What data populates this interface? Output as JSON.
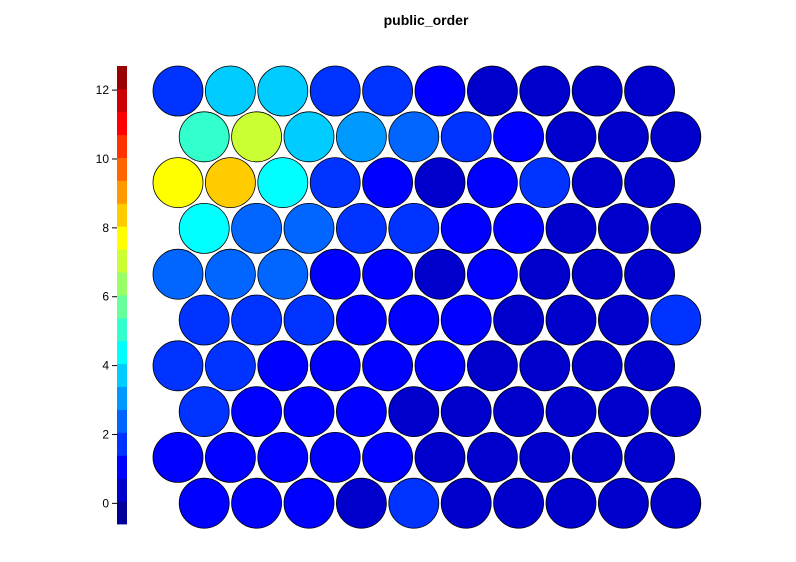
{
  "chart_data": {
    "type": "heatmap",
    "title": "public_order",
    "xlabel": "",
    "ylabel": "",
    "grid": false,
    "legend_position": "left",
    "colorbar": {
      "min": -0.6,
      "max": 12.7,
      "ticks": [
        0,
        2,
        4,
        6,
        8,
        10,
        12
      ],
      "colormap": "jet",
      "levels": 20
    },
    "hexgrid": {
      "rows": 10,
      "cols": 10,
      "cells": [
        [
          2.0,
          3.5,
          3.5,
          2.0,
          2.0,
          1.0,
          0.6,
          0.6,
          0.6,
          0.5
        ],
        [
          4.8,
          6.8,
          4.0,
          3.2,
          2.5,
          1.5,
          1.0,
          0.5,
          0.5,
          0.4
        ],
        [
          7.8,
          8.6,
          4.1,
          1.6,
          1.3,
          0.2,
          1.2,
          1.6,
          0.2,
          0.3
        ],
        [
          4.7,
          2.3,
          2.3,
          2.0,
          1.6,
          1.0,
          1.2,
          0.3,
          0.3,
          0.3
        ],
        [
          2.5,
          2.5,
          2.3,
          1.2,
          1.0,
          0.4,
          1.0,
          0.3,
          0.3,
          0.3
        ],
        [
          2.0,
          2.0,
          1.6,
          1.1,
          1.1,
          1.1,
          0.4,
          0.3,
          0.4,
          1.4
        ],
        [
          1.6,
          1.5,
          1.3,
          1.2,
          1.1,
          1.0,
          0.4,
          0.3,
          0.3,
          0.3
        ],
        [
          2.0,
          1.1,
          1.1,
          1.0,
          0.1,
          0.1,
          0.2,
          0.2,
          0.2,
          0.2
        ],
        [
          1.1,
          1.1,
          1.0,
          1.0,
          1.0,
          0.3,
          0.2,
          0.3,
          0.3,
          0.3
        ],
        [
          1.3,
          1.2,
          1.2,
          0.2,
          1.7,
          0.2,
          0.2,
          0.2,
          0.3,
          0.2
        ]
      ]
    }
  }
}
